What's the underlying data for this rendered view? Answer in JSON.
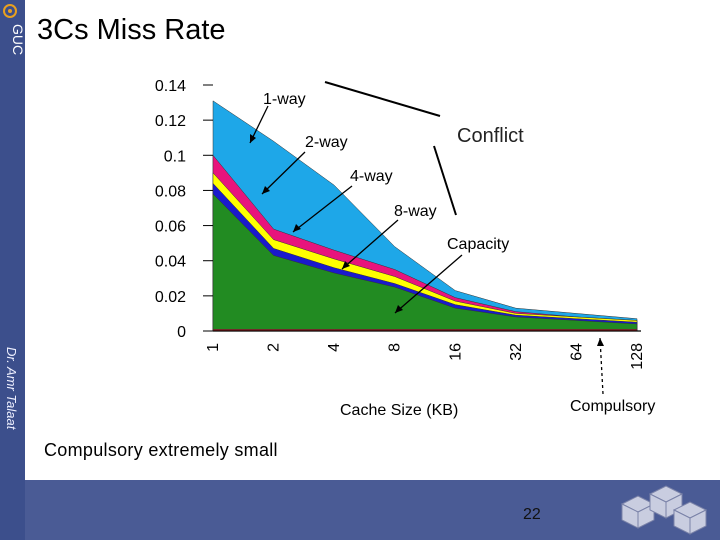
{
  "slide": {
    "title": "3Cs Miss Rate",
    "side_text": "Dr. Amr Talaat",
    "logo_text": "GUC",
    "note": "Compulsory extremely small",
    "page_number": "22"
  },
  "chart_data": {
    "type": "area",
    "categories": [
      "1",
      "2",
      "4",
      "8",
      "16",
      "32",
      "64",
      "128"
    ],
    "xlabel": "Cache Size (KB)",
    "ylabel": "",
    "ylim": [
      0,
      0.14
    ],
    "yticks": [
      "0",
      "0.02",
      "0.04",
      "0.06",
      "0.08",
      "0.1",
      "0.12",
      "0.14"
    ],
    "grid": false,
    "layers_cumulative": [
      {
        "id": "compulsory",
        "color": "#b22222",
        "values": [
          0.001,
          0.001,
          0.001,
          0.001,
          0.001,
          0.001,
          0.001,
          0.001
        ]
      },
      {
        "id": "capacity",
        "color": "#228b22",
        "values": [
          0.078,
          0.043,
          0.033,
          0.025,
          0.013,
          0.008,
          0.006,
          0.004
        ]
      },
      {
        "id": "8-way",
        "color": "#1a1acd",
        "values": [
          0.084,
          0.047,
          0.036,
          0.027,
          0.015,
          0.009,
          0.007,
          0.005
        ]
      },
      {
        "id": "4-way",
        "color": "#ffff00",
        "values": [
          0.09,
          0.052,
          0.041,
          0.031,
          0.017,
          0.01,
          0.008,
          0.006
        ]
      },
      {
        "id": "2-way",
        "color": "#e8147c",
        "values": [
          0.1,
          0.058,
          0.046,
          0.035,
          0.019,
          0.011,
          0.008,
          0.006
        ]
      },
      {
        "id": "1-way",
        "color": "#1ea7e8",
        "values": [
          0.131,
          0.108,
          0.083,
          0.048,
          0.023,
          0.013,
          0.01,
          0.007
        ]
      }
    ],
    "annotations": {
      "one_way": "1-way",
      "two_way": "2-way",
      "four_way": "4-way",
      "eight_way": "8-way",
      "conflict": "Conflict",
      "capacity": "Capacity",
      "compulsory": "Compulsory"
    }
  }
}
